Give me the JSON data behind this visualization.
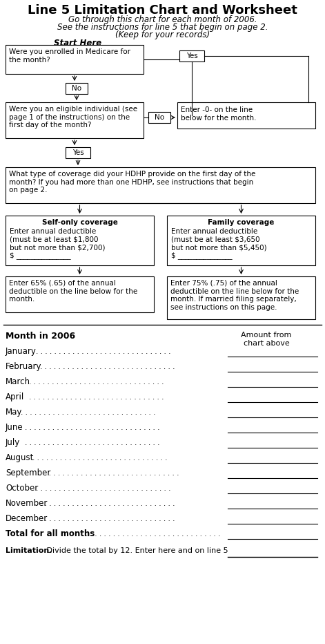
{
  "title": "Line 5 Limitation Chart and Worksheet",
  "subtitle_lines": [
    "Go through this chart for each month of 2006.",
    "See the instructions for line 5 that begin on page 2.",
    "(Keep for your records)"
  ],
  "start_here_label": "Start Here",
  "months": [
    "January",
    "February",
    "March",
    "April",
    "May",
    "June",
    "July",
    "August",
    "September",
    "October",
    "November",
    "December"
  ],
  "worksheet_col1": "Month in 2006",
  "worksheet_col2": "Amount from\nchart above",
  "total_label": "Total for all months",
  "limitation_label": "Limitation. Divide the total by 12. Enter here and on line 5",
  "bg_color": "#ffffff",
  "title_fontsize": 13,
  "subtitle_fontsize": 8.5,
  "body_fontsize": 7.5
}
